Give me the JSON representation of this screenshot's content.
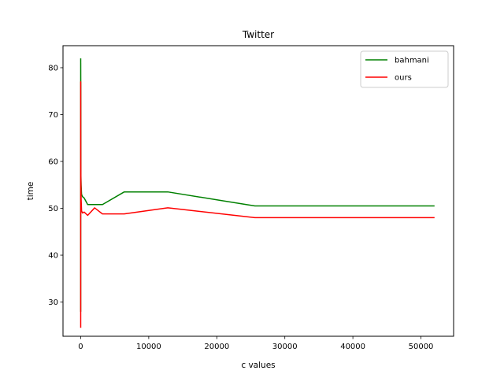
{
  "chart_data": {
    "type": "line",
    "title": "Twitter",
    "xlabel": "c values",
    "ylabel": "time",
    "xlim": [
      -2600,
      54800
    ],
    "ylim": [
      22.7,
      84.7
    ],
    "xticks": [
      0,
      10000,
      20000,
      30000,
      40000,
      50000
    ],
    "yticks": [
      30,
      40,
      50,
      60,
      70,
      80
    ],
    "legend_position": "upper-right",
    "grid": false,
    "series": [
      {
        "name": "bahmani",
        "color": "#008000",
        "x": [
          1,
          2,
          4,
          8,
          16,
          32,
          64,
          128,
          256,
          512,
          1024,
          2048,
          3200,
          6400,
          12800,
          25600,
          52000
        ],
        "y": [
          82,
          28,
          81,
          78,
          76,
          57,
          55,
          53,
          52.5,
          52.2,
          50.8,
          50.8,
          50.8,
          53.5,
          53.5,
          50.5,
          50.5
        ]
      },
      {
        "name": "ours",
        "color": "#ff0000",
        "x": [
          1,
          2,
          4,
          8,
          16,
          32,
          64,
          128,
          256,
          512,
          1024,
          2048,
          3200,
          6400,
          12800,
          25600,
          52000
        ],
        "y": [
          24.5,
          77,
          75,
          68,
          60,
          56,
          52,
          49.5,
          49,
          49.2,
          48.5,
          50.1,
          48.8,
          48.8,
          50.1,
          48,
          48
        ]
      }
    ]
  }
}
